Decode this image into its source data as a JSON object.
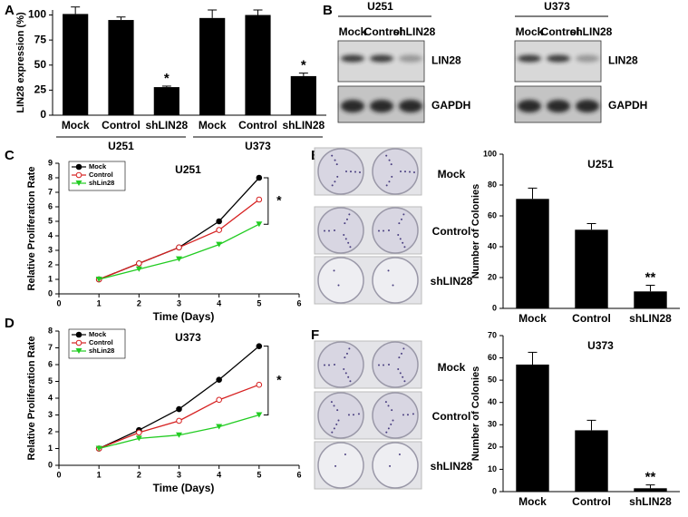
{
  "chart_data": [
    {
      "type": "bar",
      "panel": "A",
      "ylabel": "LIN28 expression (%)",
      "categories": [
        "Mock",
        "Control",
        "shLIN28",
        "Mock",
        "Control",
        "shLIN28"
      ],
      "group_labels": [
        "U251",
        "U373"
      ],
      "values": [
        101,
        95,
        28,
        97,
        100,
        39
      ],
      "errors": [
        7,
        3,
        1,
        8,
        5,
        3
      ],
      "value_annotations": [
        null,
        null,
        "*",
        null,
        null,
        "*"
      ],
      "color": "#000000",
      "ylim": [
        0,
        105
      ],
      "yticks": [
        0,
        25,
        50,
        75,
        100
      ]
    },
    {
      "type": "line",
      "panel": "C",
      "title": "U251",
      "xlabel": "Time (Days)",
      "ylabel": "Relative Proliferation Rate",
      "x": [
        1,
        2,
        3,
        4,
        5
      ],
      "xlim": [
        0,
        6
      ],
      "xticks": [
        0,
        1,
        2,
        3,
        4,
        5,
        6
      ],
      "ylim": [
        0,
        9
      ],
      "yticks": [
        0,
        1,
        2,
        3,
        4,
        5,
        6,
        7,
        8,
        9
      ],
      "legend": "upper-left",
      "annotation": "*",
      "series": [
        {
          "name": "Mock",
          "color": "#000000",
          "marker": "circle",
          "values": [
            1,
            2.1,
            3.2,
            5.0,
            8.0
          ]
        },
        {
          "name": "Control",
          "color": "#d62020",
          "marker": "open-circle",
          "values": [
            1,
            2.1,
            3.2,
            4.4,
            6.5
          ]
        },
        {
          "name": "shLin28",
          "color": "#22cc22",
          "marker": "triangle",
          "values": [
            1,
            1.7,
            2.4,
            3.4,
            4.8
          ]
        }
      ]
    },
    {
      "type": "line",
      "panel": "D",
      "title": "U373",
      "xlabel": "Time (Days)",
      "ylabel": "Relative Proliferation Rate",
      "x": [
        1,
        2,
        3,
        4,
        5
      ],
      "xlim": [
        0,
        6
      ],
      "xticks": [
        0,
        1,
        2,
        3,
        4,
        5,
        6
      ],
      "ylim": [
        0,
        8
      ],
      "yticks": [
        0,
        1,
        2,
        3,
        4,
        5,
        6,
        7,
        8
      ],
      "legend": "upper-left",
      "annotation": "*",
      "series": [
        {
          "name": "Mock",
          "color": "#000000",
          "marker": "circle",
          "values": [
            1,
            2.1,
            3.35,
            5.1,
            7.1
          ]
        },
        {
          "name": "Control",
          "color": "#d62020",
          "marker": "open-circle",
          "values": [
            1,
            1.95,
            2.65,
            3.9,
            4.8
          ]
        },
        {
          "name": "shLin28",
          "color": "#22cc22",
          "marker": "triangle",
          "values": [
            1,
            1.6,
            1.8,
            2.3,
            3.0
          ]
        }
      ]
    },
    {
      "type": "bar",
      "title": "U251",
      "ylabel": "Number of Colonies",
      "categories": [
        "Mock",
        "Control",
        "shLIN28"
      ],
      "values": [
        71,
        51,
        11
      ],
      "errors": [
        7,
        4,
        4
      ],
      "value_annotations": [
        null,
        null,
        "**"
      ],
      "color": "#000000",
      "ylim": [
        0,
        100
      ],
      "yticks": [
        0,
        20,
        40,
        60,
        80,
        100
      ]
    },
    {
      "type": "bar",
      "title": "U373",
      "ylabel": "Number of Colonies",
      "categories": [
        "Mock",
        "Control",
        "shLIN28"
      ],
      "values": [
        57,
        27.5,
        1.5
      ],
      "errors": [
        5.5,
        4.5,
        1.5
      ],
      "value_annotations": [
        null,
        null,
        "**"
      ],
      "color": "#000000",
      "ylim": [
        0,
        70
      ],
      "yticks": [
        0,
        10,
        20,
        30,
        40,
        50,
        60,
        70
      ]
    }
  ],
  "blots": {
    "panel": "B",
    "cell_lines": [
      {
        "name": "U251",
        "lanes": [
          "Mock",
          "Control",
          "shLIN28"
        ],
        "proteins": [
          "LIN28",
          "GAPDH"
        ]
      },
      {
        "name": "U373",
        "lanes": [
          "Mock",
          "Control",
          "shLIN28"
        ],
        "proteins": [
          "LIN28",
          "GAPDH"
        ]
      }
    ]
  },
  "colony_images": [
    {
      "panel": "E",
      "title": "U251",
      "rows": [
        "Mock",
        "Control",
        "shLIN28"
      ]
    },
    {
      "panel": "F",
      "title": "U373",
      "rows": [
        "Mock",
        "Control",
        "shLIN28"
      ]
    }
  ]
}
